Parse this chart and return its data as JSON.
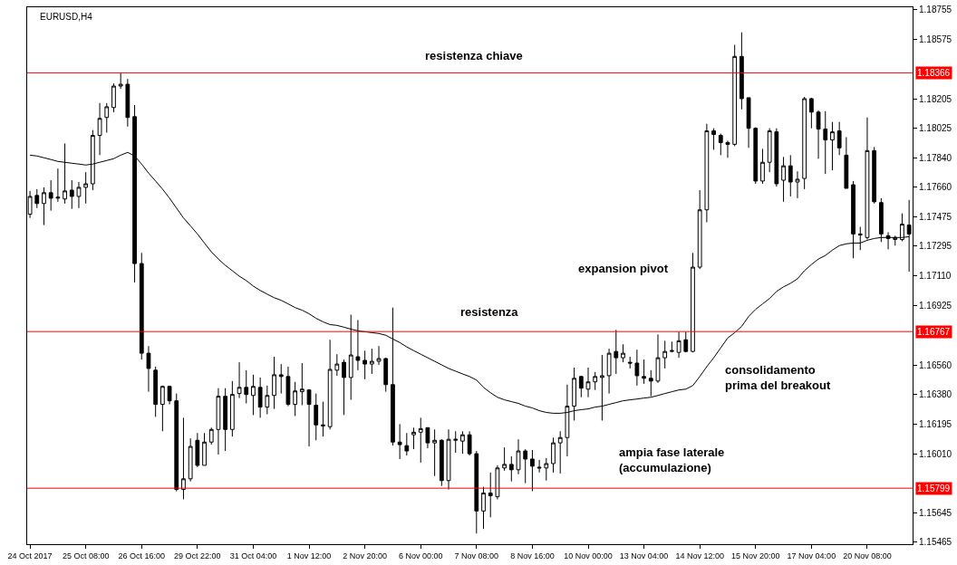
{
  "chart_data": {
    "type": "candlestick",
    "title": "EURUSD,H4",
    "categories": [
      "24 Oct 2017",
      null,
      null,
      null,
      null,
      null,
      null,
      null,
      "25 Oct 08:00",
      null,
      null,
      null,
      null,
      null,
      null,
      null,
      "26 Oct 16:00",
      null,
      null,
      null,
      null,
      null,
      null,
      null,
      "29 Oct 22:00",
      null,
      null,
      null,
      null,
      null,
      null,
      null,
      "31 Oct 04:00",
      null,
      null,
      null,
      null,
      null,
      null,
      null,
      "1 Nov 12:00",
      null,
      null,
      null,
      null,
      null,
      null,
      null,
      "2 Nov 20:00",
      null,
      null,
      null,
      null,
      null,
      null,
      null,
      "6 Nov 00:00",
      null,
      null,
      null,
      null,
      null,
      null,
      null,
      "7 Nov 08:00",
      null,
      null,
      null,
      null,
      null,
      null,
      null,
      "8 Nov 16:00",
      null,
      null,
      null,
      null,
      null,
      null,
      null,
      "10 Nov 00:00",
      null,
      null,
      null,
      null,
      null,
      null,
      null,
      "13 Nov 04:00",
      null,
      null,
      null,
      null,
      null,
      null,
      null,
      "14 Nov 12:00",
      null,
      null,
      null,
      null,
      null,
      null,
      null,
      "15 Nov 20:00",
      null,
      null,
      null,
      null,
      null,
      null,
      null,
      "17 Nov 04:00",
      null,
      null,
      null,
      null,
      null,
      null,
      null,
      "20 Nov 08:00",
      null,
      null,
      null,
      null,
      null,
      null
    ],
    "ohlc": [
      [
        1.17492,
        1.17636,
        1.17469,
        1.17602
      ],
      [
        1.17608,
        1.17647,
        1.1753,
        1.17558
      ],
      [
        1.17558,
        1.17658,
        1.17425,
        1.17625
      ],
      [
        1.17625,
        1.17702,
        1.17514,
        1.17591
      ],
      [
        1.17591,
        1.17774,
        1.17569,
        1.17597
      ],
      [
        1.17586,
        1.17929,
        1.17558,
        1.17636
      ],
      [
        1.17641,
        1.17702,
        1.17525,
        1.17602
      ],
      [
        1.17602,
        1.17691,
        1.1753,
        1.17658
      ],
      [
        1.17658,
        1.17752,
        1.17558,
        1.1768
      ],
      [
        1.1768,
        1.18012,
        1.17641,
        1.17979
      ],
      [
        1.17979,
        1.18179,
        1.17857,
        1.18084
      ],
      [
        1.1809,
        1.18179,
        1.17996,
        1.18156
      ],
      [
        1.18151,
        1.183,
        1.18123,
        1.18284
      ],
      [
        1.18284,
        1.18367,
        1.18267,
        1.18295
      ],
      [
        1.18295,
        1.18328,
        1.18034,
        1.1809
      ],
      [
        1.18095,
        1.18167,
        1.17071,
        1.17187
      ],
      [
        1.17187,
        1.17253,
        1.16594,
        1.16633
      ],
      [
        1.16633,
        1.16677,
        1.16395,
        1.16539
      ],
      [
        1.16528,
        1.1655,
        1.1624,
        1.16317
      ],
      [
        1.16317,
        1.16433,
        1.16151,
        1.16428
      ],
      [
        1.16428,
        1.16433,
        1.16317,
        1.16339
      ],
      [
        1.16339,
        1.16384,
        1.1578,
        1.15791
      ],
      [
        1.15791,
        1.16234,
        1.1573,
        1.15857
      ],
      [
        1.15857,
        1.16107,
        1.15841,
        1.16057
      ],
      [
        1.16095,
        1.1614,
        1.15929,
        1.1594
      ],
      [
        1.1594,
        1.1614,
        1.1594,
        1.16084
      ],
      [
        1.16084,
        1.16173,
        1.16068,
        1.16162
      ],
      [
        1.16162,
        1.16417,
        1.16007,
        1.16367
      ],
      [
        1.16367,
        1.16417,
        1.16029,
        1.16162
      ],
      [
        1.16162,
        1.16461,
        1.16118,
        1.16378
      ],
      [
        1.16384,
        1.16577,
        1.16356,
        1.16422
      ],
      [
        1.16422,
        1.16528,
        1.16323,
        1.16378
      ],
      [
        1.16372,
        1.165,
        1.16251,
        1.16428
      ],
      [
        1.16422,
        1.16483,
        1.16234,
        1.163
      ],
      [
        1.163,
        1.16433,
        1.16256,
        1.16372
      ],
      [
        1.16372,
        1.16611,
        1.16289,
        1.165
      ],
      [
        1.165,
        1.16566,
        1.16384,
        1.16489
      ],
      [
        1.16489,
        1.1655,
        1.16306,
        1.16317
      ],
      [
        1.16317,
        1.16456,
        1.16245,
        1.164
      ],
      [
        1.16395,
        1.16572,
        1.16312,
        1.16411
      ],
      [
        1.16406,
        1.16411,
        1.16057,
        1.16317
      ],
      [
        1.16312,
        1.16384,
        1.16095,
        1.1619
      ],
      [
        1.1619,
        1.16334,
        1.16118,
        1.16184
      ],
      [
        1.16179,
        1.16716,
        1.16162,
        1.16533
      ],
      [
        1.16528,
        1.16627,
        1.16494,
        1.16566
      ],
      [
        1.16577,
        1.16594,
        1.16251,
        1.16483
      ],
      [
        1.16483,
        1.16871,
        1.16345,
        1.16622
      ],
      [
        1.16611,
        1.16838,
        1.16528,
        1.16589
      ],
      [
        1.16589,
        1.16649,
        1.16472,
        1.16566
      ],
      [
        1.16566,
        1.16661,
        1.16505,
        1.16583
      ],
      [
        1.16583,
        1.16677,
        1.16561,
        1.166
      ],
      [
        1.166,
        1.16605,
        1.16395,
        1.16439
      ],
      [
        1.16439,
        1.16915,
        1.16062,
        1.16084
      ],
      [
        1.16084,
        1.16195,
        1.15979,
        1.16068
      ],
      [
        1.16062,
        1.1614,
        1.16001,
        1.16029
      ],
      [
        1.16129,
        1.16173,
        1.1604,
        1.16145
      ],
      [
        1.16145,
        1.16234,
        1.15957,
        1.16167
      ],
      [
        1.16173,
        1.16173,
        1.16046,
        1.16079
      ],
      [
        1.16079,
        1.16162,
        1.15874,
        1.16095
      ],
      [
        1.16095,
        1.16101,
        1.15813,
        1.15846
      ],
      [
        1.15846,
        1.16162,
        1.15791,
        1.16101
      ],
      [
        1.16095,
        1.16151,
        1.16018,
        1.16101
      ],
      [
        1.1609,
        1.16151,
        1.16012,
        1.16129
      ],
      [
        1.16129,
        1.16151,
        1.16001,
        1.16012
      ],
      [
        1.16012,
        1.16029,
        1.15519,
        1.15658
      ],
      [
        1.15658,
        1.15807,
        1.15547,
        1.15769
      ],
      [
        1.15769,
        1.15896,
        1.15619,
        1.15752
      ],
      [
        1.15746,
        1.1594,
        1.1573,
        1.15924
      ],
      [
        1.15924,
        1.16051,
        1.15907,
        1.15946
      ],
      [
        1.15946,
        1.15996,
        1.15841,
        1.15913
      ],
      [
        1.15913,
        1.16101,
        1.15885,
        1.16029
      ],
      [
        1.16029,
        1.1604,
        1.1583,
        1.15979
      ],
      [
        1.15979,
        1.16035,
        1.1578,
        1.15935
      ],
      [
        1.15929,
        1.15974,
        1.15896,
        1.15924
      ],
      [
        1.15924,
        1.15985,
        1.15846,
        1.15951
      ],
      [
        1.15951,
        1.16112,
        1.15896,
        1.16079
      ],
      [
        1.16079,
        1.16151,
        1.1589,
        1.16112
      ],
      [
        1.16112,
        1.16439,
        1.15996,
        1.16306
      ],
      [
        1.16306,
        1.16544,
        1.16217,
        1.16478
      ],
      [
        1.16489,
        1.16494,
        1.16361,
        1.16417
      ],
      [
        1.16411,
        1.16544,
        1.16361,
        1.16456
      ],
      [
        1.16456,
        1.16517,
        1.16406,
        1.16489
      ],
      [
        1.16483,
        1.16622,
        1.16217,
        1.16494
      ],
      [
        1.16494,
        1.16661,
        1.16384,
        1.16633
      ],
      [
        1.16644,
        1.16777,
        1.16505,
        1.16605
      ],
      [
        1.16605,
        1.16688,
        1.16577,
        1.16633
      ],
      [
        1.16577,
        1.16611,
        1.16539,
        1.16572
      ],
      [
        1.16572,
        1.16655,
        1.16433,
        1.16494
      ],
      [
        1.16489,
        1.16594,
        1.16444,
        1.16478
      ],
      [
        1.16478,
        1.16528,
        1.16367,
        1.16461
      ],
      [
        1.16461,
        1.16749,
        1.1645,
        1.16605
      ],
      [
        1.16605,
        1.1671,
        1.16539,
        1.16644
      ],
      [
        1.16644,
        1.16705,
        1.16638,
        1.16649
      ],
      [
        1.16638,
        1.16766,
        1.16605,
        1.1671
      ],
      [
        1.16716,
        1.16766,
        1.16638,
        1.16644
      ],
      [
        1.16644,
        1.17253,
        1.16638,
        1.17165
      ],
      [
        1.17165,
        1.17641,
        1.17154,
        1.17519
      ],
      [
        1.17519,
        1.18051,
        1.17442,
        1.18007
      ],
      [
        1.18007,
        1.18023,
        1.1789,
        1.17985
      ],
      [
        1.17979,
        1.1799,
        1.17857,
        1.17935
      ],
      [
        1.17935,
        1.17946,
        1.17841,
        1.17924
      ],
      [
        1.17924,
        1.18539,
        1.17913,
        1.18467
      ],
      [
        1.18467,
        1.18616,
        1.1814,
        1.18206
      ],
      [
        1.18212,
        1.18212,
        1.17902,
        1.18023
      ],
      [
        1.18023,
        1.18029,
        1.1768,
        1.17697
      ],
      [
        1.17697,
        1.17896,
        1.1768,
        1.17813
      ],
      [
        1.17813,
        1.18023,
        1.17752,
        1.18007
      ],
      [
        1.18001,
        1.18023,
        1.17663,
        1.1768
      ],
      [
        1.17702,
        1.17846,
        1.17569,
        1.17791
      ],
      [
        1.17791,
        1.17857,
        1.17602,
        1.17691
      ],
      [
        1.17691,
        1.17757,
        1.17591,
        1.17708
      ],
      [
        1.17713,
        1.18217,
        1.17647,
        1.18206
      ],
      [
        1.18206,
        1.18212,
        1.18023,
        1.18123
      ],
      [
        1.18123,
        1.18134,
        1.17835,
        1.18018
      ],
      [
        1.18018,
        1.18129,
        1.17741,
        1.17951
      ],
      [
        1.17951,
        1.18062,
        1.17763,
        1.18001
      ],
      [
        1.18007,
        1.18062,
        1.17857,
        1.17902
      ],
      [
        1.17857,
        1.17968,
        1.17652,
        1.17652
      ],
      [
        1.17674,
        1.17697,
        1.1722,
        1.1737
      ],
      [
        1.1737,
        1.17414,
        1.1727,
        1.17364
      ],
      [
        1.17348,
        1.1809,
        1.17336,
        1.17885
      ],
      [
        1.17885,
        1.17907,
        1.17558,
        1.17569
      ],
      [
        1.17564,
        1.17591,
        1.1732,
        1.1737
      ],
      [
        1.17359,
        1.17381,
        1.17275,
        1.17342
      ],
      [
        1.17336,
        1.17359,
        1.17298,
        1.17348
      ],
      [
        1.17336,
        1.17497,
        1.17325,
        1.17431
      ],
      [
        1.17425,
        1.1758,
        1.17137,
        1.1737
      ]
    ],
    "series": [
      {
        "type": "line",
        "color": "#000000",
        "values": [
          1.17857,
          1.17852,
          1.17841,
          1.1783,
          1.17818,
          1.17813,
          1.17807,
          1.17802,
          1.17796,
          1.17802,
          1.17813,
          1.17824,
          1.17835,
          1.17857,
          1.17874,
          1.17852,
          1.17802,
          1.17746,
          1.17697,
          1.17647,
          1.17591,
          1.1753,
          1.17469,
          1.1742,
          1.1737,
          1.17314,
          1.17259,
          1.17215,
          1.17176,
          1.17143,
          1.17109,
          1.17082,
          1.17048,
          1.17021,
          1.16998,
          1.16976,
          1.1696,
          1.16938,
          1.16915,
          1.16899,
          1.16877,
          1.16849,
          1.16827,
          1.1681,
          1.16805,
          1.16794,
          1.16782,
          1.16771,
          1.16766,
          1.1676,
          1.16755,
          1.16744,
          1.16721,
          1.16699,
          1.16672,
          1.16649,
          1.16627,
          1.16605,
          1.16583,
          1.16561,
          1.16539,
          1.16522,
          1.16505,
          1.16489,
          1.16467,
          1.16422,
          1.16389,
          1.16361,
          1.16345,
          1.16334,
          1.16323,
          1.16306,
          1.16295,
          1.16278,
          1.16267,
          1.16262,
          1.16262,
          1.16267,
          1.16278,
          1.16284,
          1.16289,
          1.163,
          1.16306,
          1.16317,
          1.16328,
          1.16339,
          1.16345,
          1.1635,
          1.16356,
          1.16361,
          1.16372,
          1.16384,
          1.16395,
          1.16406,
          1.16411,
          1.16433,
          1.16489,
          1.1655,
          1.16605,
          1.16666,
          1.16727,
          1.1676,
          1.16799,
          1.1686,
          1.16904,
          1.16938,
          1.16971,
          1.17015,
          1.17043,
          1.17065,
          1.17093,
          1.17143,
          1.17181,
          1.17215,
          1.17237,
          1.1727,
          1.17298,
          1.17309,
          1.17314,
          1.17314,
          1.17331,
          1.17342,
          1.17348,
          1.17348,
          1.17348,
          1.17348,
          1.17353
        ]
      }
    ],
    "ylim": [
      1.15453,
      1.18771
    ],
    "yticks": [
      1.15465,
      1.15645,
      {
        "value": 1.1601,
        "label": "1.16010"
      },
      1.16195,
      {
        "value": 1.1638,
        "label": "1.16380"
      },
      {
        "value": 1.1656,
        "label": "1.16560"
      },
      1.16925,
      {
        "value": 1.1711,
        "label": "1.17110"
      },
      1.17295,
      1.17475,
      {
        "value": 1.1766,
        "label": "1.17660"
      },
      {
        "value": 1.1784,
        "label": "1.17840"
      },
      1.18025,
      1.18205,
      1.18575,
      1.18755
    ],
    "ref_lines": [
      {
        "axis": "y",
        "value": 1.18366,
        "label": "1.18366",
        "color": "#ff0000"
      },
      {
        "axis": "y",
        "value": 1.16767,
        "label": "1.16767",
        "color": "#ff0000"
      },
      {
        "axis": "y",
        "value": 1.15799,
        "label": "1.15799",
        "color": "#ff0000"
      }
    ],
    "annotations": [
      "resistenza chiave",
      "resistenza",
      "expansion pivot",
      "consolidamento\nprima del breakout",
      "ampia fase laterale\n(accumulazione)"
    ]
  }
}
